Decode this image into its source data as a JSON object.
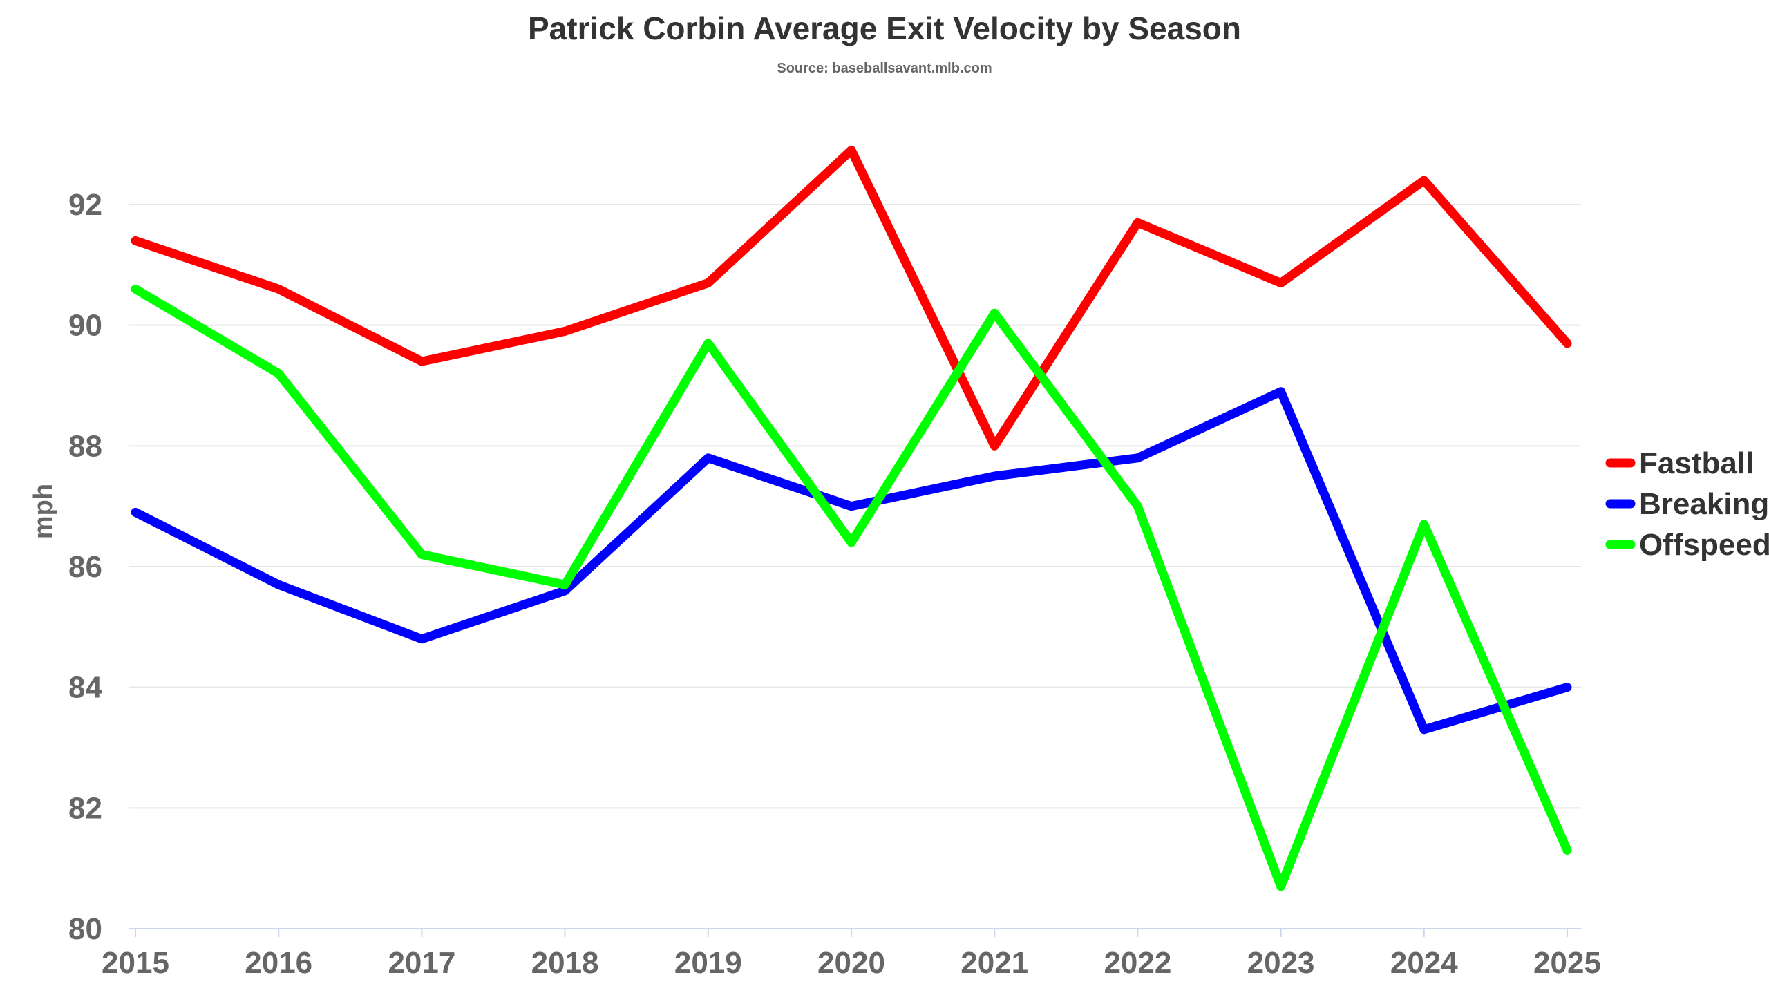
{
  "chart_data": {
    "type": "line",
    "title": "Patrick Corbin Average Exit Velocity by Season",
    "subtitle": "Source: baseballsavant.mlb.com",
    "xlabel": "",
    "ylabel": "mph",
    "x": [
      2015,
      2016,
      2017,
      2018,
      2019,
      2020,
      2021,
      2022,
      2023,
      2024,
      2025
    ],
    "ylim": [
      80,
      93.5
    ],
    "yticks": [
      80,
      82,
      84,
      86,
      88,
      90,
      92
    ],
    "grid": true,
    "legend_position": "right",
    "series": [
      {
        "name": "Fastball",
        "color": "#ff0000",
        "values": [
          91.4,
          90.6,
          89.4,
          89.9,
          90.7,
          92.9,
          88.0,
          91.7,
          90.7,
          92.4,
          89.7
        ]
      },
      {
        "name": "Breaking",
        "color": "#0000ff",
        "values": [
          86.9,
          85.7,
          84.8,
          85.6,
          87.8,
          87.0,
          87.5,
          87.8,
          88.9,
          83.3,
          84.0
        ]
      },
      {
        "name": "Offspeed",
        "color": "#00ff00",
        "values": [
          90.6,
          89.2,
          86.2,
          85.7,
          89.7,
          86.4,
          90.2,
          87.0,
          80.7,
          86.7,
          81.3
        ]
      }
    ]
  }
}
